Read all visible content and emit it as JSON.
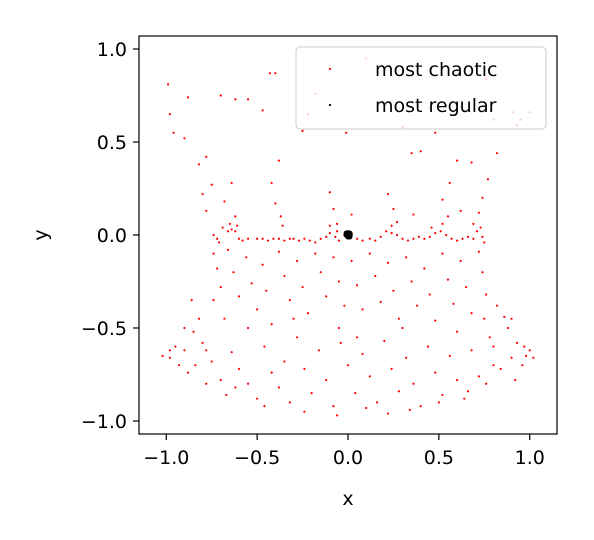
{
  "chart_data": {
    "type": "scatter",
    "title": "",
    "xlabel": "x",
    "ylabel": "y",
    "xlim": [
      -1.15,
      1.15
    ],
    "ylim": [
      -1.07,
      1.07
    ],
    "xticks": [
      -1.0,
      -0.5,
      0.0,
      0.5,
      1.0
    ],
    "yticks": [
      -1.0,
      -0.5,
      0.0,
      0.5,
      1.0
    ],
    "xtick_labels": [
      "−1.0",
      "−0.5",
      "0.0",
      "0.5",
      "1.0"
    ],
    "ytick_labels": [
      "−1.0",
      "−0.5",
      "0.0",
      "0.5",
      "1.0"
    ],
    "grid": false,
    "legend_position": "upper-right",
    "series": [
      {
        "name": "most chaotic",
        "color": "#ff0000",
        "marker": "point",
        "approximate": true,
        "points": [
          [
            -0.99,
            0.81
          ],
          [
            -0.98,
            0.65
          ],
          [
            -0.96,
            0.55
          ],
          [
            -0.88,
            0.74
          ],
          [
            -0.78,
            0.42
          ],
          [
            -0.75,
            0.27
          ],
          [
            -0.7,
            0.75
          ],
          [
            -0.62,
            0.73
          ],
          [
            -0.55,
            0.73
          ],
          [
            -0.47,
            0.67
          ],
          [
            -0.43,
            0.87
          ],
          [
            -0.4,
            0.87
          ],
          [
            -0.25,
            0.56
          ],
          [
            -0.22,
            0.65
          ],
          [
            -0.18,
            0.76
          ],
          [
            -0.01,
            0.55
          ],
          [
            0.1,
            0.95
          ],
          [
            0.16,
            0.91
          ],
          [
            0.3,
            0.58
          ],
          [
            0.45,
            0.68
          ],
          [
            0.48,
            0.55
          ],
          [
            0.62,
            0.69
          ],
          [
            0.72,
            0.71
          ],
          [
            0.76,
            0.84
          ],
          [
            0.8,
            0.62
          ],
          [
            0.82,
            0.44
          ],
          [
            0.91,
            0.66
          ],
          [
            0.95,
            0.62
          ],
          [
            1.0,
            0.66
          ],
          [
            0.93,
            0.59
          ],
          [
            -0.9,
            0.52
          ],
          [
            -0.82,
            0.38
          ],
          [
            -0.38,
            0.4
          ],
          [
            0.4,
            0.45
          ],
          [
            0.6,
            0.4
          ],
          [
            0.68,
            0.39
          ],
          [
            -0.8,
            0.22
          ],
          [
            -0.78,
            0.13
          ],
          [
            -0.68,
            0.18
          ],
          [
            -0.62,
            0.1
          ],
          [
            -0.42,
            0.28
          ],
          [
            -0.4,
            0.17
          ],
          [
            -0.37,
            0.1
          ],
          [
            -0.1,
            0.23
          ],
          [
            -0.08,
            0.14
          ],
          [
            -0.06,
            0.06
          ],
          [
            0.22,
            0.22
          ],
          [
            0.25,
            0.14
          ],
          [
            0.27,
            0.07
          ],
          [
            0.35,
            0.44
          ],
          [
            0.36,
            0.11
          ],
          [
            0.52,
            0.19
          ],
          [
            0.55,
            0.1
          ],
          [
            0.62,
            0.13
          ],
          [
            0.72,
            0.12
          ],
          [
            0.74,
            0.2
          ],
          [
            0.77,
            0.3
          ],
          [
            0.02,
            0.11
          ],
          [
            -0.64,
            0.28
          ],
          [
            0.56,
            0.28
          ],
          [
            -0.74,
            0.0
          ],
          [
            -0.72,
            -0.02
          ],
          [
            -0.71,
            -0.04
          ],
          [
            -0.66,
            0.02
          ],
          [
            -0.64,
            0.03
          ],
          [
            -0.62,
            0.02
          ],
          [
            -0.6,
            -0.02
          ],
          [
            -0.58,
            -0.03
          ],
          [
            -0.55,
            -0.02
          ],
          [
            -0.5,
            -0.02
          ],
          [
            -0.47,
            -0.02
          ],
          [
            -0.44,
            -0.03
          ],
          [
            -0.41,
            -0.02
          ],
          [
            -0.38,
            -0.02
          ],
          [
            -0.35,
            -0.03
          ],
          [
            -0.32,
            -0.02
          ],
          [
            -0.3,
            -0.02
          ],
          [
            -0.27,
            -0.03
          ],
          [
            -0.24,
            -0.02
          ],
          [
            -0.21,
            -0.03
          ],
          [
            -0.18,
            -0.04
          ],
          [
            -0.15,
            -0.02
          ],
          [
            -0.12,
            -0.01
          ],
          [
            -0.1,
            0.01
          ],
          [
            -0.07,
            -0.01
          ],
          [
            -0.05,
            -0.03
          ],
          [
            -0.02,
            0.0
          ],
          [
            0.02,
            0.01
          ],
          [
            0.05,
            -0.02
          ],
          [
            0.08,
            -0.03
          ],
          [
            0.12,
            -0.02
          ],
          [
            0.15,
            -0.03
          ],
          [
            0.18,
            -0.01
          ],
          [
            0.21,
            0.02
          ],
          [
            0.24,
            0.01
          ],
          [
            0.27,
            0.0
          ],
          [
            0.3,
            -0.02
          ],
          [
            0.33,
            -0.03
          ],
          [
            0.36,
            -0.02
          ],
          [
            0.39,
            -0.01
          ],
          [
            0.42,
            -0.02
          ],
          [
            0.45,
            -0.01
          ],
          [
            0.48,
            0.01
          ],
          [
            0.51,
            0.02
          ],
          [
            0.54,
            0.0
          ],
          [
            0.57,
            -0.02
          ],
          [
            0.6,
            -0.03
          ],
          [
            0.63,
            -0.02
          ],
          [
            0.66,
            -0.01
          ],
          [
            0.69,
            -0.02
          ],
          [
            0.71,
            0.02
          ],
          [
            0.73,
            0.04
          ],
          [
            0.74,
            -0.01
          ],
          [
            0.75,
            -0.04
          ],
          [
            -0.65,
            0.06
          ],
          [
            -0.61,
            0.05
          ],
          [
            -0.36,
            0.05
          ],
          [
            -0.1,
            0.05
          ],
          [
            0.24,
            0.05
          ],
          [
            0.52,
            0.06
          ],
          [
            0.69,
            0.06
          ],
          [
            -0.69,
            0.04
          ],
          [
            0.46,
            0.04
          ],
          [
            -0.06,
            0.02
          ],
          [
            -0.74,
            -0.1
          ],
          [
            -0.72,
            -0.18
          ],
          [
            -0.7,
            -0.28
          ],
          [
            -0.74,
            -0.35
          ],
          [
            -0.68,
            -0.45
          ],
          [
            -0.66,
            -0.08
          ],
          [
            -0.63,
            -0.2
          ],
          [
            -0.6,
            -0.33
          ],
          [
            -0.56,
            -0.12
          ],
          [
            -0.53,
            -0.26
          ],
          [
            -0.5,
            -0.4
          ],
          [
            -0.47,
            -0.16
          ],
          [
            -0.45,
            -0.3
          ],
          [
            -0.42,
            -0.48
          ],
          [
            -0.38,
            -0.09
          ],
          [
            -0.35,
            -0.22
          ],
          [
            -0.32,
            -0.35
          ],
          [
            -0.28,
            -0.14
          ],
          [
            -0.25,
            -0.28
          ],
          [
            -0.22,
            -0.42
          ],
          [
            -0.18,
            -0.1
          ],
          [
            -0.15,
            -0.2
          ],
          [
            -0.12,
            -0.33
          ],
          [
            -0.08,
            -0.12
          ],
          [
            -0.05,
            -0.25
          ],
          [
            -0.02,
            -0.38
          ],
          [
            0.02,
            -0.14
          ],
          [
            0.05,
            -0.27
          ],
          [
            0.08,
            -0.4
          ],
          [
            0.12,
            -0.1
          ],
          [
            0.15,
            -0.22
          ],
          [
            0.18,
            -0.36
          ],
          [
            0.22,
            -0.15
          ],
          [
            0.25,
            -0.3
          ],
          [
            0.28,
            -0.45
          ],
          [
            0.32,
            -0.12
          ],
          [
            0.35,
            -0.25
          ],
          [
            0.38,
            -0.38
          ],
          [
            0.42,
            -0.18
          ],
          [
            0.45,
            -0.32
          ],
          [
            0.48,
            -0.46
          ],
          [
            0.52,
            -0.1
          ],
          [
            0.55,
            -0.24
          ],
          [
            0.58,
            -0.37
          ],
          [
            0.62,
            -0.14
          ],
          [
            0.65,
            -0.28
          ],
          [
            0.68,
            -0.42
          ],
          [
            0.72,
            -0.09
          ],
          [
            0.74,
            -0.2
          ],
          [
            0.76,
            -0.32
          ],
          [
            0.75,
            -0.45
          ],
          [
            0.78,
            -0.55
          ],
          [
            -0.85,
            -0.52
          ],
          [
            -0.9,
            -0.62
          ],
          [
            -0.95,
            -0.6
          ],
          [
            -0.98,
            -0.66
          ],
          [
            -1.02,
            -0.65
          ],
          [
            -0.93,
            -0.7
          ],
          [
            -0.88,
            -0.74
          ],
          [
            -0.84,
            -0.7
          ],
          [
            -0.8,
            -0.58
          ],
          [
            -0.78,
            -0.8
          ],
          [
            -0.75,
            -0.68
          ],
          [
            -0.7,
            -0.78
          ],
          [
            -0.67,
            -0.86
          ],
          [
            -0.64,
            -0.63
          ],
          [
            -0.6,
            -0.72
          ],
          [
            -0.55,
            -0.8
          ],
          [
            -0.5,
            -0.88
          ],
          [
            -0.46,
            -0.6
          ],
          [
            -0.42,
            -0.74
          ],
          [
            -0.38,
            -0.82
          ],
          [
            -0.35,
            -0.68
          ],
          [
            -0.32,
            -0.9
          ],
          [
            -0.28,
            -0.55
          ],
          [
            -0.24,
            -0.72
          ],
          [
            -0.2,
            -0.85
          ],
          [
            -0.16,
            -0.62
          ],
          [
            -0.12,
            -0.78
          ],
          [
            -0.08,
            -0.92
          ],
          [
            -0.04,
            -0.58
          ],
          [
            0.0,
            -0.7
          ],
          [
            0.04,
            -0.85
          ],
          [
            0.08,
            -0.64
          ],
          [
            0.12,
            -0.76
          ],
          [
            0.16,
            -0.9
          ],
          [
            0.2,
            -0.57
          ],
          [
            0.24,
            -0.72
          ],
          [
            0.28,
            -0.84
          ],
          [
            0.32,
            -0.66
          ],
          [
            0.36,
            -0.8
          ],
          [
            0.4,
            -0.92
          ],
          [
            0.44,
            -0.6
          ],
          [
            0.48,
            -0.74
          ],
          [
            0.52,
            -0.86
          ],
          [
            0.56,
            -0.65
          ],
          [
            0.6,
            -0.78
          ],
          [
            0.64,
            -0.88
          ],
          [
            0.68,
            -0.62
          ],
          [
            0.72,
            -0.76
          ],
          [
            0.76,
            -0.8
          ],
          [
            0.8,
            -0.6
          ],
          [
            0.84,
            -0.72
          ],
          [
            0.88,
            -0.5
          ],
          [
            0.9,
            -0.66
          ],
          [
            0.93,
            -0.58
          ],
          [
            0.96,
            -0.7
          ],
          [
            0.98,
            -0.65
          ],
          [
            1.0,
            -0.62
          ],
          [
            1.02,
            -0.66
          ],
          [
            0.86,
            -0.44
          ],
          [
            0.82,
            -0.38
          ],
          [
            -0.82,
            -0.45
          ],
          [
            -0.86,
            -0.35
          ],
          [
            -0.24,
            -0.95
          ],
          [
            0.22,
            -0.96
          ],
          [
            -0.06,
            -0.97
          ],
          [
            0.1,
            -0.93
          ],
          [
            0.34,
            -0.94
          ],
          [
            -0.46,
            -0.92
          ],
          [
            0.5,
            -0.9
          ],
          [
            -0.62,
            -0.82
          ],
          [
            0.66,
            -0.84
          ],
          [
            -0.78,
            -0.62
          ],
          [
            0.8,
            -0.7
          ],
          [
            0.92,
            -0.78
          ],
          [
            -0.9,
            -0.5
          ],
          [
            0.9,
            -0.45
          ],
          [
            -0.98,
            -0.62
          ],
          [
            0.97,
            -0.6
          ],
          [
            -0.3,
            -0.45
          ],
          [
            0.3,
            -0.5
          ],
          [
            -0.05,
            -0.5
          ],
          [
            0.05,
            -0.55
          ],
          [
            -0.55,
            -0.5
          ],
          [
            0.6,
            -0.52
          ]
        ]
      },
      {
        "name": "most regular",
        "color": "#000000",
        "marker": "point",
        "approximate": true,
        "points": [
          [
            0.0,
            0.0
          ],
          [
            0.01,
            0.01
          ],
          [
            -0.01,
            0.0
          ],
          [
            0.0,
            -0.01
          ],
          [
            0.01,
            -0.01
          ],
          [
            -0.01,
            0.01
          ],
          [
            0.005,
            0.005
          ],
          [
            -0.005,
            -0.005
          ],
          [
            0.0,
            0.012
          ],
          [
            0.012,
            0.0
          ]
        ]
      }
    ]
  }
}
